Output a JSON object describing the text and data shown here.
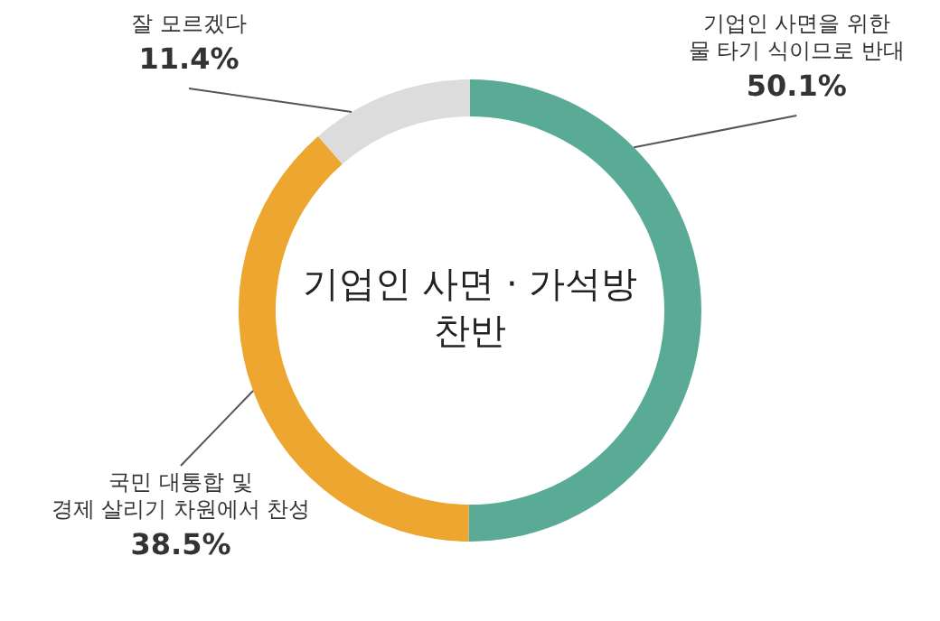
{
  "chart_data": {
    "type": "donut",
    "title": "기업인 사면 · 가석방\n찬반",
    "categories": [
      "기업인 사면을 위한\n물 타기 식이므로 반대",
      "국민 대통합 및\n경제 살리기 차원에서 찬성",
      "잘 모르겠다"
    ],
    "values": [
      50.1,
      38.5,
      11.4
    ],
    "value_labels": [
      "50.1%",
      "38.5%",
      "11.4%"
    ],
    "colors": [
      "#5aab96",
      "#eda630",
      "#dcdcdc"
    ],
    "legend": false
  }
}
